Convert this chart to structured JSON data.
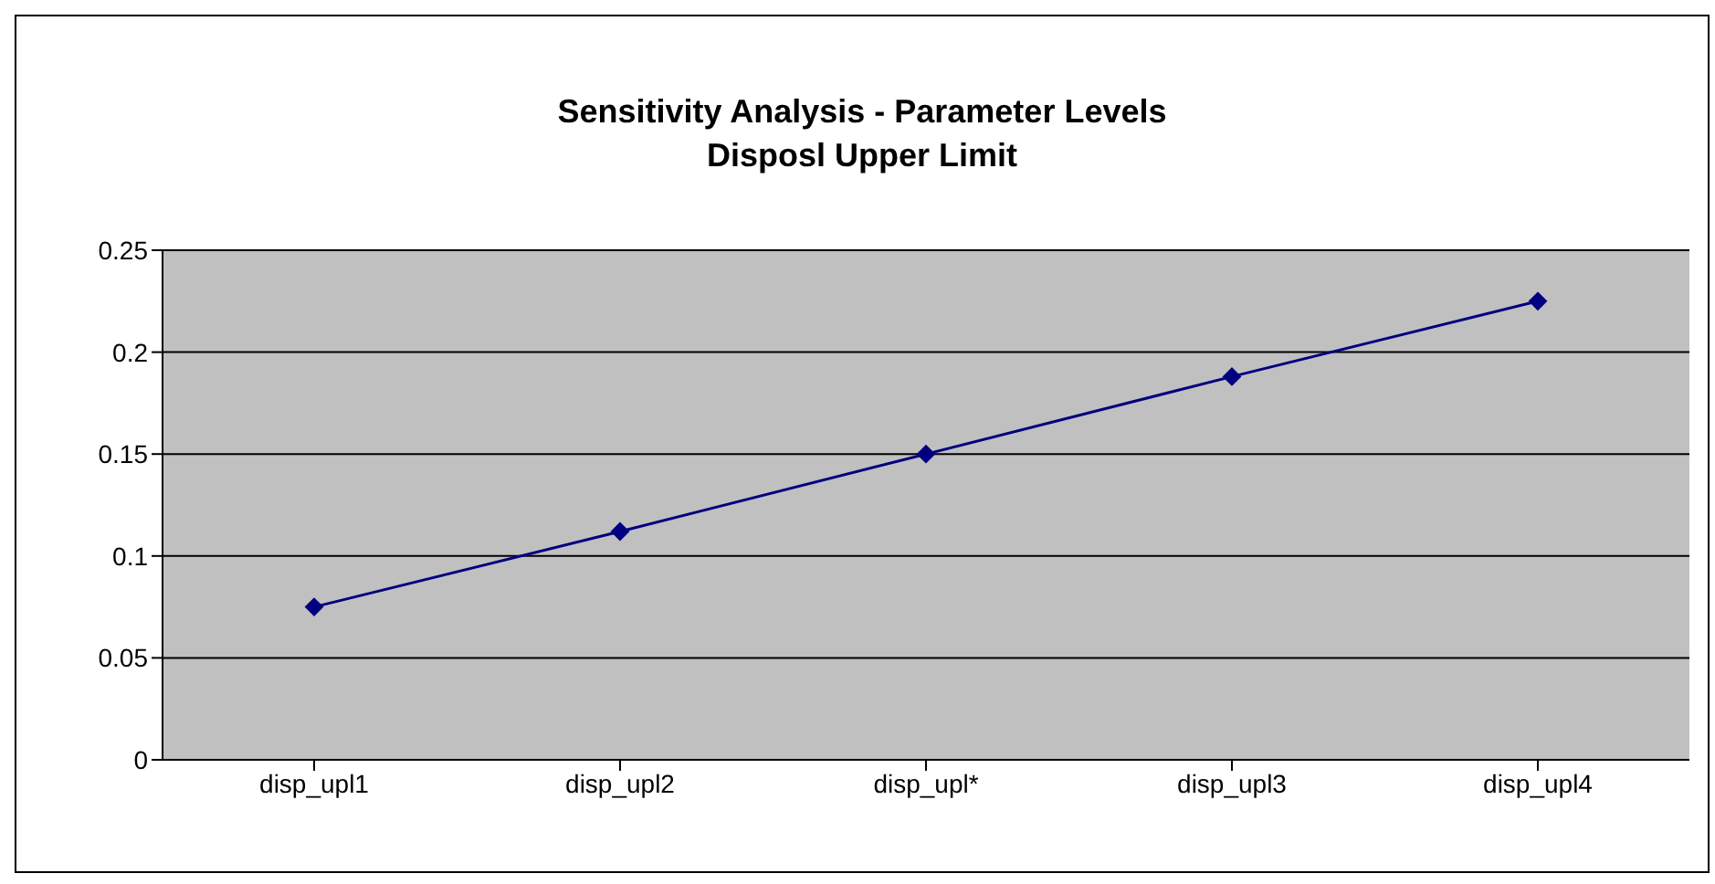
{
  "chart_data": {
    "type": "line",
    "title": "Sensitivity Analysis - Parameter Levels",
    "subtitle": "Disposl Upper Limit",
    "categories": [
      "disp_upl1",
      "disp_upl2",
      "disp_upl*",
      "disp_upl3",
      "disp_upl4"
    ],
    "series": [
      {
        "color": "#000080",
        "values": [
          0.075,
          0.112,
          0.15,
          0.188,
          0.225
        ]
      }
    ],
    "ylim": [
      0,
      0.25
    ],
    "yticks": [
      0,
      0.05,
      0.1,
      0.15,
      0.2,
      0.25
    ],
    "grid": "y",
    "marker": "diamond",
    "line_style": "solid"
  }
}
